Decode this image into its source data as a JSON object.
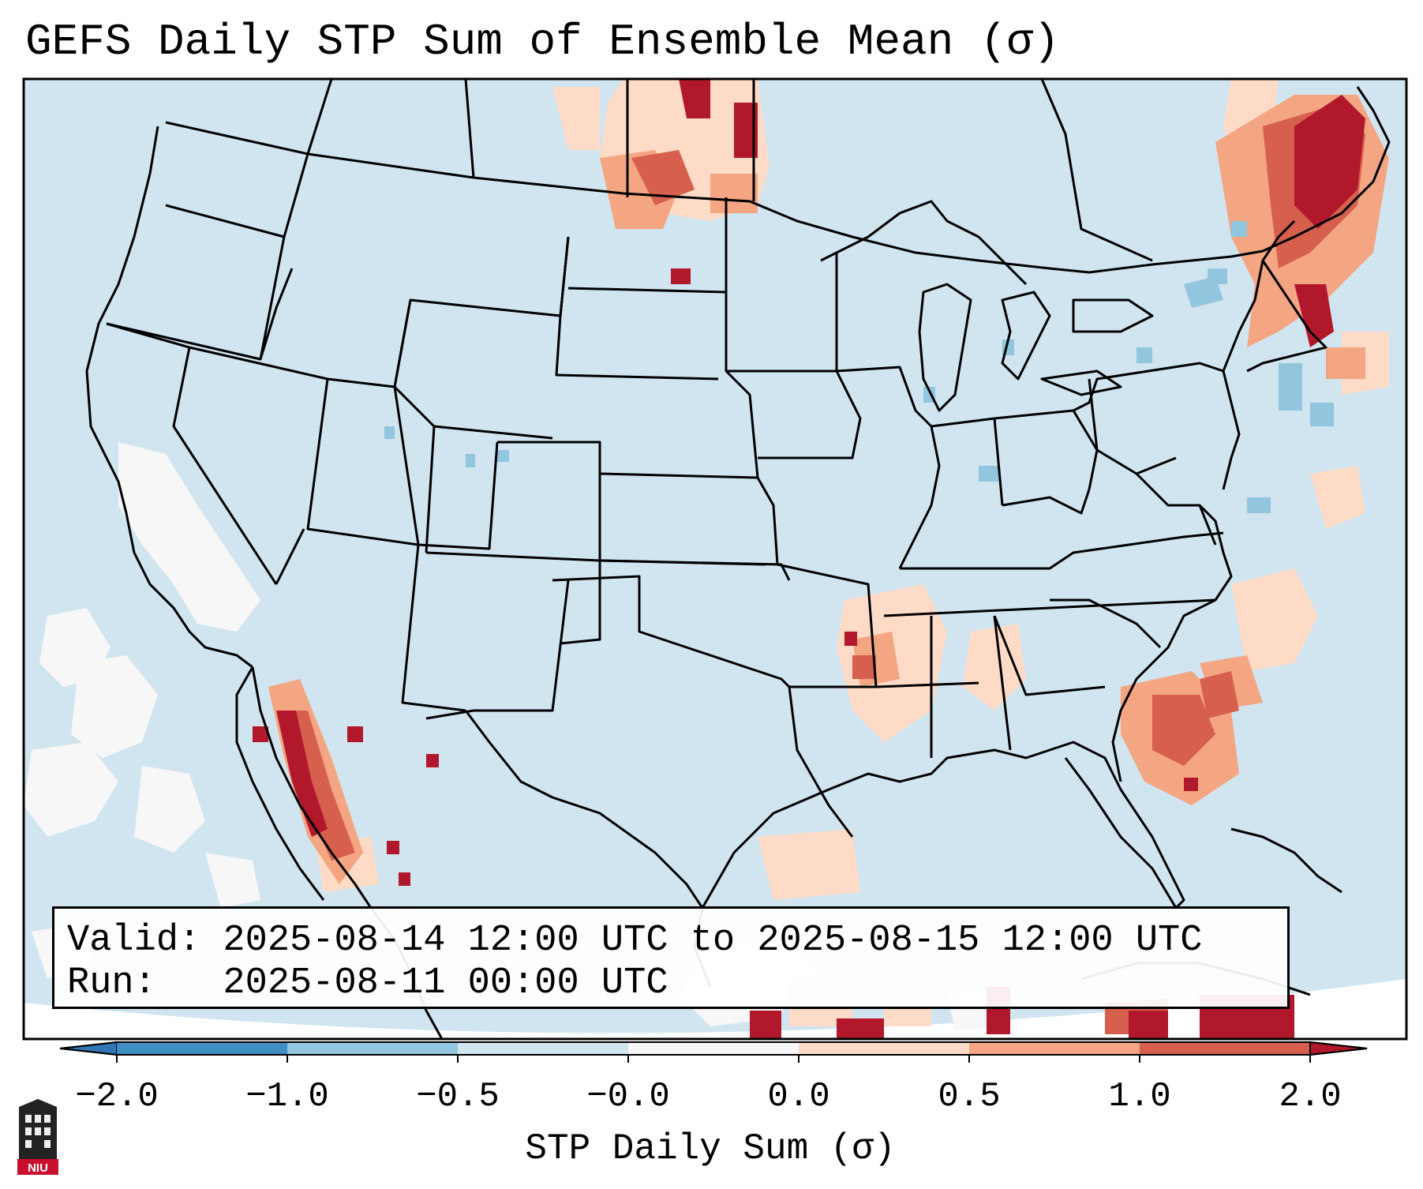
{
  "title": "GEFS Daily STP Sum of Ensemble Mean (σ)",
  "info": {
    "valid": "Valid: 2025-08-14 12:00 UTC to 2025-08-15 12:00 UTC",
    "run": "Run:   2025-08-11 00:00 UTC"
  },
  "colorbar": {
    "label": "STP Daily Sum (σ)",
    "ticks": [
      "−2.0",
      "−1.0",
      "−0.5",
      "−0.0",
      "0.0",
      "0.5",
      "1.0",
      "2.0"
    ],
    "bins": [
      {
        "range": "< -2.0",
        "color": "#2f78b5"
      },
      {
        "range": "-2.0 to -1.0",
        "color": "#3f8ec4"
      },
      {
        "range": "-1.0 to -0.5",
        "color": "#92c5de"
      },
      {
        "range": "-0.5 to -0.0",
        "color": "#d1e5f0"
      },
      {
        "range": "-0.0 to 0.0",
        "color": "#f7f7f7"
      },
      {
        "range": "0.0 to 0.5",
        "color": "#fddbc7"
      },
      {
        "range": "0.5 to 1.0",
        "color": "#f4a582"
      },
      {
        "range": "1.0 to 2.0",
        "color": "#d6604d"
      },
      {
        "range": "> 2.0",
        "color": "#b2182b"
      }
    ]
  },
  "map": {
    "background_color": "#d1e5f0",
    "projection": "Lambert Conformal (CONUS)"
  },
  "logo": {
    "text": "NIU",
    "color": "#c8102e"
  }
}
